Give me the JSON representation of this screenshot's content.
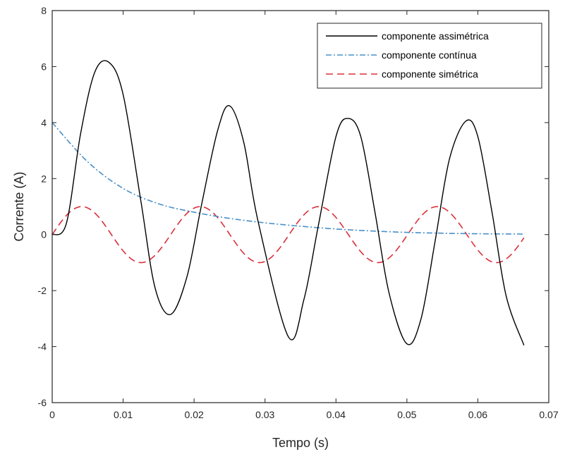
{
  "chart_data": {
    "type": "line",
    "title": "",
    "xlabel": "Tempo (s)",
    "ylabel": "Corrente (A)",
    "xlim": [
      0,
      0.07
    ],
    "ylim": [
      -6,
      8
    ],
    "grid": false,
    "legend_position": "top-right",
    "x_ticks": [
      "0",
      "0.01",
      "0.02",
      "0.03",
      "0.04",
      "0.05",
      "0.06",
      "0.07"
    ],
    "y_ticks": [
      "-6",
      "-4",
      "-2",
      "0",
      "2",
      "4",
      "6",
      "8"
    ],
    "series": [
      {
        "name": "componente assimétrica",
        "color": "#000000",
        "style": "solid",
        "x": [
          0,
          0.002,
          0.004,
          0.006,
          0.008,
          0.01,
          0.0125,
          0.0145,
          0.0167,
          0.019,
          0.021,
          0.0233,
          0.025,
          0.027,
          0.029,
          0.0333,
          0.0355,
          0.0375,
          0.04,
          0.0417,
          0.0435,
          0.0455,
          0.0475,
          0.05,
          0.052,
          0.054,
          0.056,
          0.0583,
          0.06,
          0.062,
          0.064,
          0.0665
        ],
        "y": [
          0,
          0.4,
          3.6,
          5.8,
          6.15,
          5.0,
          1.2,
          -1.9,
          -2.85,
          -1.5,
          1.0,
          3.7,
          4.6,
          3.3,
          0.5,
          -3.65,
          -2.3,
          0.3,
          3.5,
          4.15,
          3.5,
          0.8,
          -2.1,
          -3.9,
          -3.0,
          -0.2,
          2.7,
          4.05,
          3.5,
          0.8,
          -2.2,
          -3.95
        ]
      },
      {
        "name": "componente contínua",
        "color": "#4a90c9",
        "style": "dashdot",
        "x": [
          0,
          0.005,
          0.01,
          0.015,
          0.02,
          0.025,
          0.03,
          0.035,
          0.04,
          0.045,
          0.05,
          0.055,
          0.06,
          0.0665
        ],
        "y": [
          4.0,
          2.6,
          1.65,
          1.1,
          0.8,
          0.58,
          0.42,
          0.3,
          0.2,
          0.13,
          0.08,
          0.05,
          0.03,
          0.02
        ]
      },
      {
        "name": "componente simétrica",
        "color": "#d9303b",
        "style": "dashed",
        "amplitude": 1.0,
        "period": 0.0167,
        "x_range": [
          0,
          0.0665
        ]
      }
    ]
  }
}
